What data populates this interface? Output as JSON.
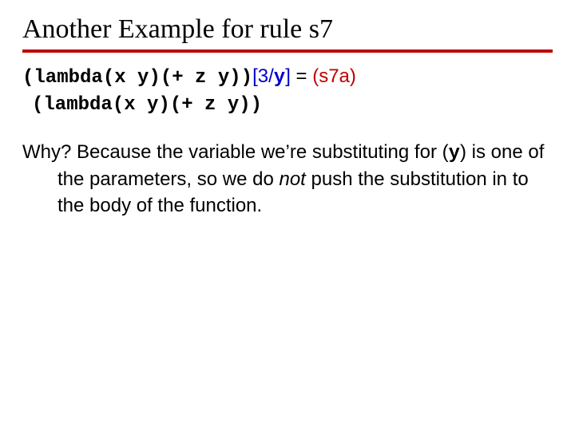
{
  "title": "Another Example for rule s7",
  "expr1": {
    "open": "(",
    "kw": "lambda",
    "params": "(x y)",
    "body": "(+ z y)",
    "close": ")",
    "sub_open": "[",
    "sub_num": "3",
    "sub_slash": "/",
    "sub_var": "y",
    "sub_close": "]",
    "eq": " = ",
    "rule": "(s7a)"
  },
  "expr2": {
    "open": "(",
    "kw": "lambda",
    "params": "(x y)",
    "body": "(+ z y)",
    "close": ")"
  },
  "why": {
    "lead": "Why?  Because the variable we’re substituting for (",
    "var": "y",
    "mid": ") is one of the parameters, so we do ",
    "not": "not",
    "tail": " push the substitution in to the body of the function."
  },
  "colors": {
    "rule": "#c00000",
    "sub": "#0000cc",
    "text": "#000000",
    "background": "#ffffff"
  },
  "fonts": {
    "title_family": "Comic Sans MS",
    "body_family": "Verdana",
    "mono_family": "Courier New",
    "title_size_pt": 26,
    "body_size_pt": 18
  }
}
